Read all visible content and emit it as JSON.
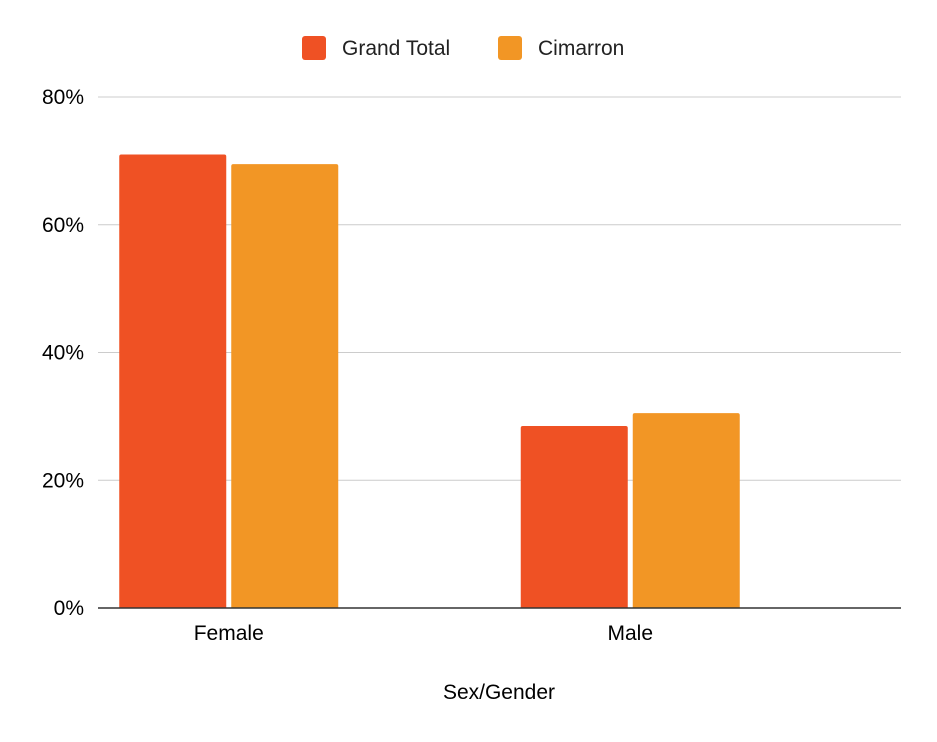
{
  "chart_data": {
    "type": "bar",
    "categories": [
      "Female",
      "Male"
    ],
    "series": [
      {
        "name": "Grand Total",
        "values": [
          71,
          28.5
        ],
        "color": "#ef5124"
      },
      {
        "name": "Cimarron",
        "values": [
          69.5,
          30.5
        ],
        "color": "#f29625"
      }
    ],
    "xlabel": "Sex/Gender",
    "ylabel": "",
    "ylim": [
      0,
      80
    ],
    "yticks": [
      0,
      20,
      40,
      60,
      80
    ],
    "ytick_labels": [
      "0%",
      "20%",
      "40%",
      "60%",
      "80%"
    ],
    "grid": true,
    "legend_position": "top-center"
  }
}
